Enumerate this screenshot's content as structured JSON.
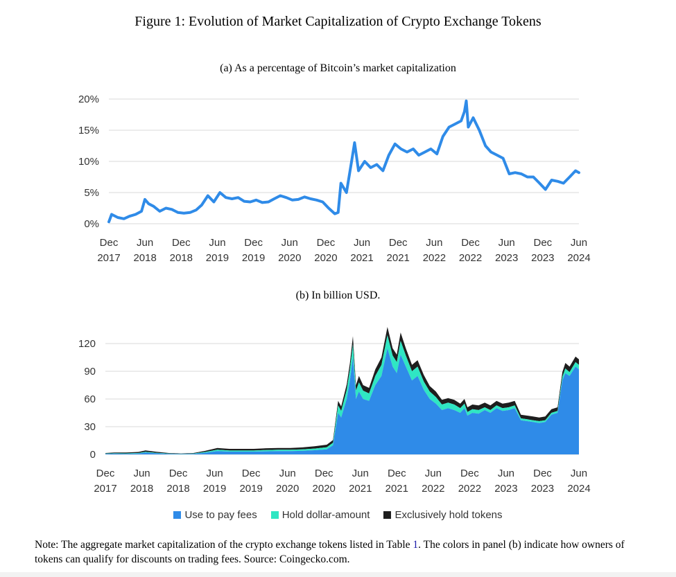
{
  "figure": {
    "title": "Figure 1: Evolution of Market Capitalization of Crypto Exchange Tokens",
    "note_prefix": "Note: The aggregate market capitalization of the crypto exchange tokens listed in Table ",
    "note_ref": "1",
    "note_suffix": ". The colors in panel (b) indicate how owners of tokens can qualify for discounts on trading fees. Source: Coingecko.com."
  },
  "colors": {
    "line": "#2f8be8",
    "fees": "#2f8be8",
    "dollar": "#2fe6c3",
    "hold": "#1e1e1e",
    "grid": "#d9d9d9"
  },
  "chart_data": [
    {
      "type": "line",
      "title": "(a) As a percentage of Bitcoin’s market capitalization",
      "xlabel": "",
      "ylabel": "",
      "ylim": [
        0,
        20
      ],
      "xlim": [
        "2017-12-01",
        "2024-06-01"
      ],
      "y_ticks": [
        "0%",
        "5%",
        "10%",
        "15%",
        "20%"
      ],
      "x_ticks": [
        [
          "Dec",
          "2017"
        ],
        [
          "Jun",
          "2018"
        ],
        [
          "Dec",
          "2018"
        ],
        [
          "Jun",
          "2019"
        ],
        [
          "Dec",
          "2019"
        ],
        [
          "Jun",
          "2020"
        ],
        [
          "Dec",
          "2020"
        ],
        [
          "Jun",
          "2021"
        ],
        [
          "Dec",
          "2021"
        ],
        [
          "Jun",
          "2022"
        ],
        [
          "Dec",
          "2022"
        ],
        [
          "Jun",
          "2023"
        ],
        [
          "Dec",
          "2023"
        ],
        [
          "Jun",
          "2024"
        ]
      ],
      "grid": true,
      "series": [
        {
          "x": [
            "2017-12-01",
            "2017-12-15",
            "2018-01-15",
            "2018-02-15",
            "2018-03-15",
            "2018-04-15",
            "2018-05-15",
            "2018-06-01",
            "2018-06-20",
            "2018-07-15",
            "2018-08-15",
            "2018-09-15",
            "2018-10-15",
            "2018-11-15",
            "2018-12-15",
            "2019-01-15",
            "2019-02-15",
            "2019-03-15",
            "2019-04-15",
            "2019-05-15",
            "2019-06-15",
            "2019-07-15",
            "2019-08-15",
            "2019-09-15",
            "2019-10-15",
            "2019-11-15",
            "2019-12-15",
            "2020-01-15",
            "2020-02-15",
            "2020-03-15",
            "2020-04-15",
            "2020-05-15",
            "2020-06-15",
            "2020-07-15",
            "2020-08-15",
            "2020-09-15",
            "2020-10-15",
            "2020-11-15",
            "2020-12-15",
            "2021-01-15",
            "2021-02-01",
            "2021-02-15",
            "2021-03-15",
            "2021-04-10",
            "2021-04-25",
            "2021-05-15",
            "2021-06-15",
            "2021-07-15",
            "2021-08-15",
            "2021-09-15",
            "2021-10-15",
            "2021-11-15",
            "2021-12-15",
            "2022-01-15",
            "2022-02-15",
            "2022-03-15",
            "2022-04-15",
            "2022-05-15",
            "2022-06-15",
            "2022-07-15",
            "2022-08-15",
            "2022-09-15",
            "2022-10-15",
            "2022-11-01",
            "2022-11-10",
            "2022-11-20",
            "2022-12-15",
            "2023-01-15",
            "2023-02-15",
            "2023-03-15",
            "2023-04-15",
            "2023-05-15",
            "2023-06-15",
            "2023-07-15",
            "2023-08-15",
            "2023-09-15",
            "2023-10-15",
            "2023-11-15",
            "2023-12-15",
            "2024-01-15",
            "2024-02-15",
            "2024-03-15",
            "2024-04-15",
            "2024-05-15",
            "2024-06-01"
          ],
          "values": [
            0.3,
            1.5,
            1.0,
            0.8,
            1.2,
            1.5,
            2.0,
            3.9,
            3.2,
            2.8,
            2.0,
            2.5,
            2.3,
            1.8,
            1.7,
            1.8,
            2.2,
            3.0,
            4.5,
            3.5,
            5.0,
            4.2,
            4.0,
            4.2,
            3.6,
            3.5,
            3.8,
            3.4,
            3.5,
            4.0,
            4.5,
            4.2,
            3.8,
            3.9,
            4.3,
            4.0,
            3.8,
            3.5,
            2.5,
            1.6,
            1.8,
            6.5,
            5.0,
            10.0,
            13.0,
            8.5,
            10.0,
            9.0,
            9.5,
            8.5,
            11.0,
            12.8,
            12.0,
            11.5,
            12.0,
            11.0,
            11.5,
            12.0,
            11.2,
            14.0,
            15.5,
            16.0,
            16.5,
            18.0,
            19.7,
            15.5,
            17.0,
            15.0,
            12.5,
            11.5,
            11.0,
            10.5,
            8.0,
            8.2,
            8.0,
            7.5,
            7.5,
            6.5,
            5.5,
            7.0,
            6.8,
            6.5,
            7.5,
            8.5,
            8.2
          ]
        }
      ]
    },
    {
      "type": "area",
      "title": "(b) In billion USD.",
      "xlabel": "",
      "ylabel": "",
      "ylim": [
        0,
        135
      ],
      "xlim": [
        "2017-12-01",
        "2024-06-01"
      ],
      "y_ticks": [
        "0",
        "30",
        "60",
        "90",
        "120"
      ],
      "x_ticks": [
        [
          "Dec",
          "2017"
        ],
        [
          "Jun",
          "2018"
        ],
        [
          "Dec",
          "2018"
        ],
        [
          "Jun",
          "2019"
        ],
        [
          "Dec",
          "2019"
        ],
        [
          "Jun",
          "2020"
        ],
        [
          "Dec",
          "2020"
        ],
        [
          "Jun",
          "2021"
        ],
        [
          "Dec",
          "2021"
        ],
        [
          "Jun",
          "2022"
        ],
        [
          "Dec",
          "2022"
        ],
        [
          "Jun",
          "2023"
        ],
        [
          "Dec",
          "2023"
        ],
        [
          "Jun",
          "2024"
        ]
      ],
      "grid": true,
      "legend_position": "bottom",
      "x": [
        "2017-12-01",
        "2018-01-15",
        "2018-03-15",
        "2018-05-15",
        "2018-06-20",
        "2018-08-15",
        "2018-10-15",
        "2018-12-15",
        "2019-02-15",
        "2019-04-15",
        "2019-06-15",
        "2019-08-15",
        "2019-10-15",
        "2019-12-15",
        "2020-02-15",
        "2020-04-15",
        "2020-06-15",
        "2020-08-15",
        "2020-10-15",
        "2020-12-15",
        "2021-01-15",
        "2021-02-10",
        "2021-02-25",
        "2021-03-25",
        "2021-04-10",
        "2021-04-25",
        "2021-05-10",
        "2021-05-25",
        "2021-06-15",
        "2021-07-15",
        "2021-08-15",
        "2021-09-15",
        "2021-10-15",
        "2021-11-10",
        "2021-12-01",
        "2021-12-20",
        "2022-01-15",
        "2022-02-15",
        "2022-03-15",
        "2022-04-15",
        "2022-05-15",
        "2022-06-15",
        "2022-07-15",
        "2022-08-15",
        "2022-09-15",
        "2022-10-15",
        "2022-11-05",
        "2022-11-20",
        "2022-12-15",
        "2023-01-15",
        "2023-02-15",
        "2023-03-15",
        "2023-04-15",
        "2023-05-15",
        "2023-06-15",
        "2023-07-15",
        "2023-08-15",
        "2023-09-15",
        "2023-10-15",
        "2023-11-15",
        "2023-12-15",
        "2024-01-15",
        "2024-02-15",
        "2024-03-10",
        "2024-03-25",
        "2024-04-15",
        "2024-05-15",
        "2024-06-01"
      ],
      "series": [
        {
          "name": "Use to pay fees",
          "values": [
            0.6,
            0.8,
            0.7,
            1.0,
            2.0,
            1.2,
            0.6,
            0.4,
            0.6,
            1.8,
            3.5,
            3.0,
            3.0,
            3.0,
            3.3,
            3.5,
            3.5,
            3.8,
            4.5,
            5.5,
            10,
            45,
            40,
            60,
            80,
            105,
            60,
            68,
            60,
            58,
            75,
            85,
            115,
            95,
            88,
            108,
            95,
            80,
            85,
            70,
            60,
            55,
            48,
            50,
            48,
            45,
            50,
            42,
            45,
            44,
            48,
            45,
            50,
            47,
            48,
            50,
            37,
            36,
            35,
            34,
            35,
            43,
            45,
            80,
            88,
            85,
            95,
            92
          ]
        },
        {
          "name": "Hold dollar-amount",
          "values": [
            0.3,
            0.4,
            0.4,
            0.5,
            0.8,
            0.5,
            0.3,
            0.2,
            0.3,
            0.8,
            1.5,
            1.2,
            1.2,
            1.2,
            1.4,
            1.5,
            1.5,
            1.6,
            1.8,
            2.2,
            2.5,
            8,
            7,
            10,
            12,
            14,
            9,
            10,
            9,
            8,
            10,
            12,
            14,
            12,
            12,
            15,
            12,
            10,
            10,
            9,
            8,
            7,
            6,
            6,
            6,
            5,
            5,
            4,
            4,
            4,
            3,
            3,
            3,
            3,
            3,
            3,
            2,
            2,
            2,
            2,
            2,
            2,
            2,
            4,
            5,
            4,
            5,
            5
          ]
        },
        {
          "name": "Exclusively hold tokens",
          "values": [
            0.6,
            0.8,
            0.9,
            1.1,
            1.5,
            1.1,
            0.6,
            0.4,
            0.6,
            1.2,
            2.0,
            1.8,
            1.8,
            1.8,
            2.0,
            2.0,
            2.0,
            2.2,
            2.5,
            2.8,
            3,
            5,
            5,
            6,
            7,
            9,
            6,
            7,
            6,
            6,
            7,
            8,
            9,
            8,
            8,
            9,
            8,
            7,
            7,
            7,
            6,
            6,
            5,
            5,
            5,
            5,
            5,
            5,
            5,
            5,
            5,
            5,
            5,
            5,
            5,
            5,
            4,
            4,
            4,
            4,
            4,
            4,
            4,
            5,
            6,
            6,
            6,
            6
          ]
        }
      ]
    }
  ],
  "legend": {
    "fees": "Use to pay fees",
    "dollar": "Hold dollar-amount",
    "hold": "Exclusively hold tokens"
  }
}
